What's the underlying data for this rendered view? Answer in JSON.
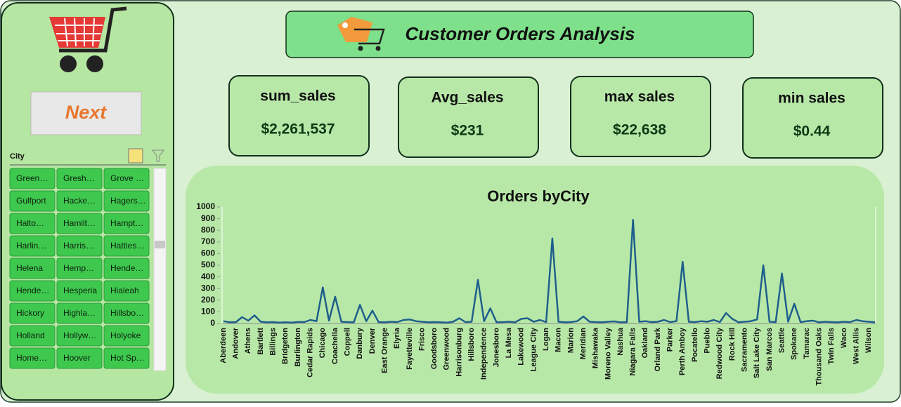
{
  "sidebar": {
    "button": "Next",
    "slicer": {
      "title": "City",
      "items": [
        "Green…",
        "Gresh…",
        "Grove …",
        "Gulfport",
        "Hacke…",
        "Hagers…",
        "Halto…",
        "Hamilt…",
        "Hampt…",
        "Harlin…",
        "Harris…",
        "Hatties…",
        "Helena",
        "Hemp…",
        "Hende…",
        "Hende…",
        "Hesperia",
        "Hialeah",
        "Hickory",
        "Highla…",
        "Hillsbo…",
        "Holland",
        "Hollyw…",
        "Holyoke",
        "Home…",
        "Hoover",
        "Hot Sp…"
      ]
    }
  },
  "header": {
    "title": "Customer Orders Analysis"
  },
  "kpis": [
    {
      "label": "sum_sales",
      "value": "$2,261,537"
    },
    {
      "label": "Avg_sales",
      "value": "$231"
    },
    {
      "label": "max sales",
      "value": "$22,638"
    },
    {
      "label": "min sales",
      "value": "$0.44"
    }
  ],
  "chart_data": {
    "type": "line",
    "title": "Orders byCity",
    "color": "#1f5f8b",
    "ylim": [
      0,
      1000
    ],
    "yticks": [
      0,
      100,
      200,
      300,
      400,
      500,
      600,
      700,
      800,
      900,
      1000
    ],
    "categories": [
      "Aberdeen",
      null,
      "Andover",
      null,
      "Athens",
      null,
      "Bartlett",
      null,
      "Billings",
      null,
      "Bridgeton",
      null,
      "Burlington",
      null,
      "Cedar Rapids",
      null,
      "Chicago",
      null,
      "Coachella",
      null,
      "Coppell",
      null,
      "Danbury",
      null,
      "Denver",
      null,
      "East Orange",
      null,
      "Elyria",
      null,
      "Fayetteville",
      null,
      "Frisco",
      null,
      "Goodsboro",
      null,
      "Greenwood",
      null,
      "Harrisonburg",
      null,
      "Hillsboro",
      null,
      "Independence",
      null,
      "Jonesboro",
      null,
      "La Mesa",
      null,
      "Lakewood",
      null,
      "League City",
      null,
      "Logan",
      null,
      "Macon",
      null,
      "Marion",
      null,
      "Meridian",
      null,
      "Mishawaka",
      null,
      "Moreno Valley",
      null,
      "Nashua",
      null,
      "Niagara Falls",
      null,
      "Oakland",
      null,
      "Orland Park",
      null,
      "Parker",
      null,
      "Perth Amboy",
      null,
      "Pocatello",
      null,
      "Pueblo",
      null,
      "Redwood City",
      null,
      "Rock Hill",
      null,
      "Sacramento",
      null,
      "Salt Lake City",
      null,
      "San Marcos",
      null,
      "Seattle",
      null,
      "Spokane",
      null,
      "Tamarac",
      null,
      "Thousand Oaks",
      null,
      "Twin Falls",
      null,
      "Waco",
      null,
      "West Allis",
      null,
      "Wilson",
      null
    ],
    "values": [
      20,
      10,
      12,
      55,
      25,
      70,
      15,
      10,
      12,
      8,
      10,
      8,
      14,
      12,
      30,
      20,
      310,
      25,
      230,
      15,
      12,
      10,
      160,
      20,
      110,
      12,
      10,
      15,
      12,
      30,
      35,
      20,
      15,
      10,
      12,
      10,
      8,
      15,
      45,
      12,
      15,
      375,
      20,
      130,
      10,
      12,
      15,
      10,
      40,
      45,
      15,
      30,
      12,
      730,
      15,
      10,
      12,
      20,
      60,
      15,
      12,
      10,
      15,
      18,
      10,
      12,
      890,
      15,
      20,
      12,
      15,
      30,
      12,
      20,
      530,
      15,
      12,
      20,
      15,
      30,
      12,
      90,
      40,
      10,
      15,
      20,
      35,
      500,
      15,
      12,
      430,
      15,
      170,
      12,
      20,
      25,
      10,
      15,
      12,
      10,
      15,
      12,
      30,
      20,
      15,
      10
    ]
  }
}
